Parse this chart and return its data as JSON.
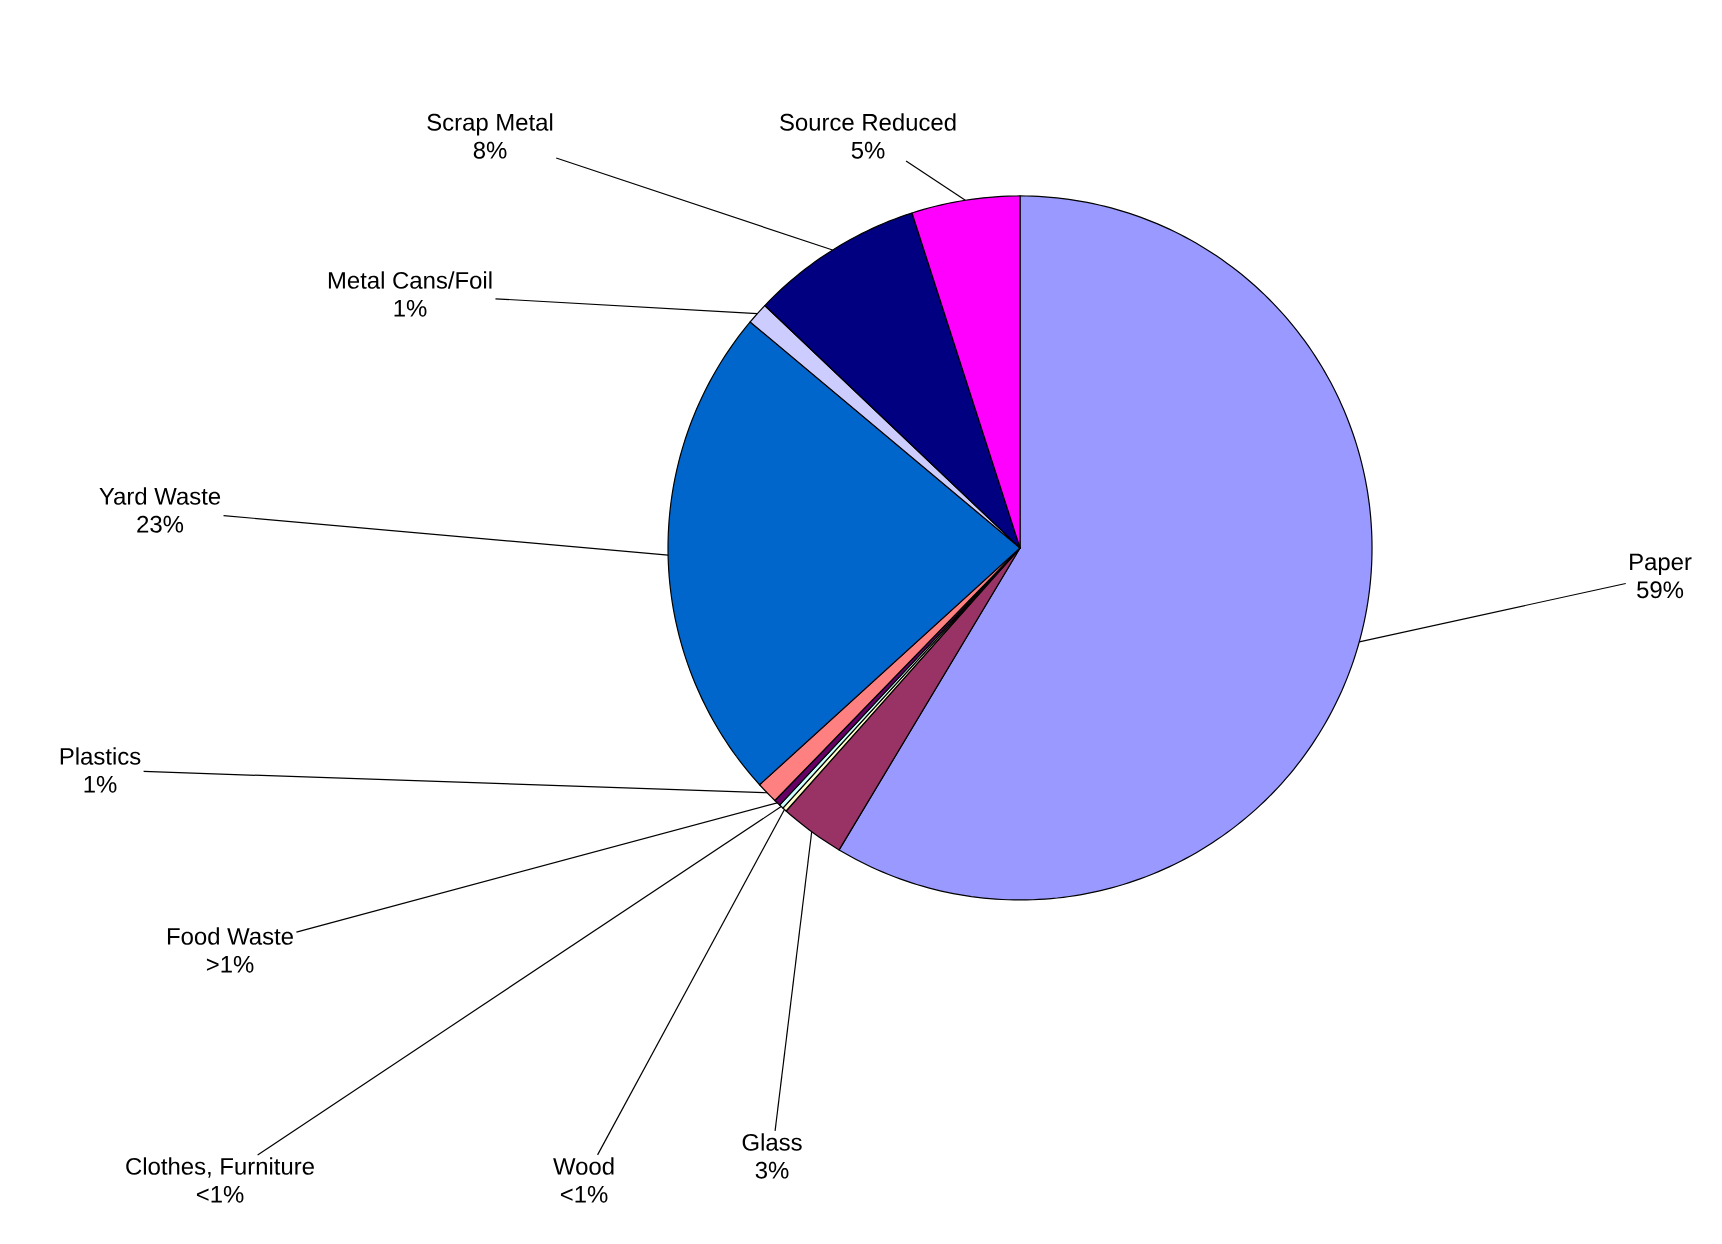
{
  "chart_data": {
    "type": "pie",
    "categories": [
      "Paper",
      "Glass",
      "Wood",
      "Clothes, Furniture",
      "Food Waste",
      "Plastics",
      "Yard Waste",
      "Metal Cans/Foil",
      "Scrap Metal",
      "Source Reduced"
    ],
    "values": [
      59,
      3,
      0.2,
      0.2,
      0.3,
      1,
      23,
      1,
      8,
      5
    ],
    "value_labels": [
      "59%",
      "3%",
      "<1%",
      "<1%",
      ">1%",
      "1%",
      "23%",
      "1%",
      "8%",
      "5%"
    ],
    "colors": [
      "#9999ff",
      "#993366",
      "#ffffcc",
      "#ccffff",
      "#660066",
      "#ff8080",
      "#0066cc",
      "#ccccff",
      "#000080",
      "#ff00ff"
    ]
  }
}
